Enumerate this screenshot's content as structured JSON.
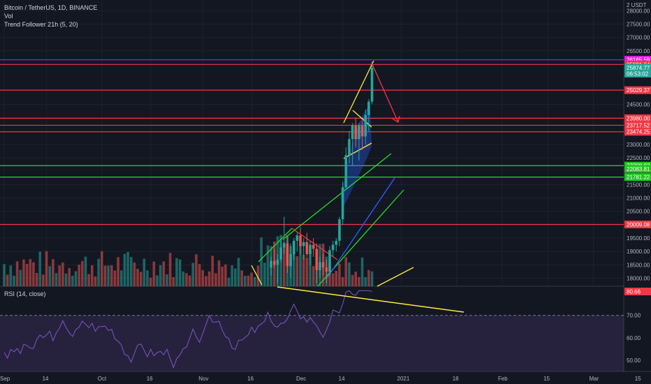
{
  "legend": {
    "symbol": "Bitcoin / TetherUS, 1D, BINANCE",
    "volume": "Vol",
    "indicator": "Trend Follower 21h (5, 20)"
  },
  "rsi_label": "RSI (14, close)",
  "chart_data": [
    {
      "type": "candlestick",
      "ylim": [
        17700,
        28400
      ],
      "y_ticks": [
        {
          "label": "28000.00",
          "value": 28000
        },
        {
          "label": "27500.00",
          "value": 27500
        },
        {
          "label": "27000.00",
          "value": 27000
        },
        {
          "label": "26500.00",
          "value": 26500
        },
        {
          "label": "24500.00",
          "value": 24500
        },
        {
          "label": "24000.00",
          "value": 24000
        },
        {
          "label": "23000.00",
          "value": 23000
        },
        {
          "label": "22500.00",
          "value": 22500
        },
        {
          "label": "21500.00",
          "value": 21500
        },
        {
          "label": "21000.00",
          "value": 21000
        },
        {
          "label": "20500.00",
          "value": 20500
        },
        {
          "label": "19500.00",
          "value": 19500
        },
        {
          "label": "19000.00",
          "value": 19000
        },
        {
          "label": "18500.00",
          "value": 18500
        },
        {
          "label": "18000.00",
          "value": 18000
        }
      ],
      "top_axis_label": "2 USDT",
      "price_labels": [
        {
          "text": "26165.59",
          "value": 26165.59,
          "color": "#e91ee8"
        },
        {
          "text": "25991.34",
          "value": 25991.34,
          "color": "#f23645"
        },
        {
          "text": "25874.77",
          "value": 25874.77,
          "color": "#26a69a"
        },
        {
          "text": "06:53:02",
          "value": 25650,
          "color": "#26a69a"
        },
        {
          "text": "25029.37",
          "value": 25029.37,
          "color": "#f23645"
        },
        {
          "text": "23980.00",
          "value": 23980,
          "color": "#f23645"
        },
        {
          "text": "23717.52",
          "value": 23717.52,
          "color": "#f23645"
        },
        {
          "text": "23474.25",
          "value": 23474.25,
          "color": "#f23645"
        },
        {
          "text": "22208.83",
          "value": 22208.83,
          "color": "#22c322"
        },
        {
          "text": "22083.81",
          "value": 22083.81,
          "color": "#22c322"
        },
        {
          "text": "21781.22",
          "value": 21781.22,
          "color": "#22c322"
        },
        {
          "text": "20009.08",
          "value": 20009.08,
          "color": "#f23645"
        }
      ],
      "horizontal_lines": [
        {
          "value": 26165.59,
          "color": "#9c27b0"
        },
        {
          "value": 25991.34,
          "color": "#f23645"
        },
        {
          "value": 25029.37,
          "color": "#f23645"
        },
        {
          "value": 23980,
          "color": "#f23645"
        },
        {
          "value": 23717.52,
          "color": "#f23645"
        },
        {
          "value": 23474.25,
          "color": "#f23645"
        },
        {
          "value": 22208.83,
          "color": "#22e022"
        },
        {
          "value": 21781.22,
          "color": "#22e022"
        },
        {
          "value": 20009.08,
          "color": "#f23645"
        }
      ],
      "x_ticks": [
        {
          "label": "Sep",
          "index": 0
        },
        {
          "label": "14",
          "index": 13
        },
        {
          "label": "Oct",
          "index": 30
        },
        {
          "label": "16",
          "index": 45
        },
        {
          "label": "Nov",
          "index": 61
        },
        {
          "label": "16",
          "index": 76
        },
        {
          "label": "Dec",
          "index": 91
        },
        {
          "label": "14",
          "index": 104
        },
        {
          "label": "2021",
          "index": 122
        },
        {
          "label": "18",
          "index": 139
        },
        {
          "label": "Feb",
          "index": 153
        },
        {
          "label": "15",
          "index": 167
        },
        {
          "label": "Mar",
          "index": 181
        },
        {
          "label": "15",
          "index": 195
        }
      ],
      "candles": [
        {
          "i": 82,
          "o": 18400,
          "h": 18800,
          "l": 18100,
          "c": 18650
        },
        {
          "i": 83,
          "o": 18650,
          "h": 19100,
          "l": 18400,
          "c": 18500
        },
        {
          "i": 84,
          "o": 18500,
          "h": 18900,
          "l": 17800,
          "c": 18700
        },
        {
          "i": 85,
          "o": 18700,
          "h": 19400,
          "l": 18600,
          "c": 19150
        },
        {
          "i": 86,
          "o": 19150,
          "h": 20300,
          "l": 18900,
          "c": 19300
        },
        {
          "i": 87,
          "o": 19300,
          "h": 19600,
          "l": 18200,
          "c": 18450
        },
        {
          "i": 88,
          "o": 18450,
          "h": 19300,
          "l": 18000,
          "c": 18900
        },
        {
          "i": 89,
          "o": 18900,
          "h": 19500,
          "l": 18700,
          "c": 19400
        },
        {
          "i": 90,
          "o": 19400,
          "h": 19700,
          "l": 19000,
          "c": 19600
        },
        {
          "i": 91,
          "o": 19600,
          "h": 19900,
          "l": 18900,
          "c": 19200
        },
        {
          "i": 92,
          "o": 19200,
          "h": 19500,
          "l": 18700,
          "c": 19350
        },
        {
          "i": 93,
          "o": 19350,
          "h": 19700,
          "l": 18800,
          "c": 18900
        },
        {
          "i": 94,
          "o": 18900,
          "h": 19400,
          "l": 18500,
          "c": 19250
        },
        {
          "i": 95,
          "o": 19250,
          "h": 19500,
          "l": 18800,
          "c": 19100
        },
        {
          "i": 96,
          "o": 19100,
          "h": 19300,
          "l": 17800,
          "c": 18300
        },
        {
          "i": 97,
          "o": 18300,
          "h": 18800,
          "l": 18000,
          "c": 18600
        },
        {
          "i": 98,
          "o": 18600,
          "h": 18900,
          "l": 18100,
          "c": 18400
        },
        {
          "i": 99,
          "o": 18400,
          "h": 18700,
          "l": 17800,
          "c": 18250
        },
        {
          "i": 100,
          "o": 18250,
          "h": 19200,
          "l": 18100,
          "c": 19050
        },
        {
          "i": 101,
          "o": 19050,
          "h": 19400,
          "l": 18800,
          "c": 19250
        },
        {
          "i": 102,
          "o": 19250,
          "h": 19500,
          "l": 19000,
          "c": 19400
        },
        {
          "i": 103,
          "o": 19400,
          "h": 20300,
          "l": 19200,
          "c": 20200
        },
        {
          "i": 104,
          "o": 20200,
          "h": 21600,
          "l": 20000,
          "c": 21400
        },
        {
          "i": 105,
          "o": 21400,
          "h": 22900,
          "l": 21300,
          "c": 22600
        },
        {
          "i": 106,
          "o": 22600,
          "h": 23500,
          "l": 22300,
          "c": 23200
        },
        {
          "i": 107,
          "o": 23200,
          "h": 23800,
          "l": 22200,
          "c": 23700
        },
        {
          "i": 108,
          "o": 23700,
          "h": 24000,
          "l": 22900,
          "c": 23200
        },
        {
          "i": 109,
          "o": 23200,
          "h": 23800,
          "l": 22400,
          "c": 23700
        },
        {
          "i": 110,
          "o": 23700,
          "h": 23900,
          "l": 22800,
          "c": 23300
        },
        {
          "i": 111,
          "o": 23300,
          "h": 24300,
          "l": 23000,
          "c": 24100
        },
        {
          "i": 112,
          "o": 24100,
          "h": 24700,
          "l": 23500,
          "c": 24600
        },
        {
          "i": 113,
          "o": 24600,
          "h": 26100,
          "l": 24500,
          "c": 25870
        }
      ],
      "rsi": {
        "ylim": [
          45,
          83
        ],
        "overbought": 70,
        "y_ticks": [
          {
            "label": "70.00",
            "value": 70
          },
          {
            "label": "60.00",
            "value": 60
          },
          {
            "label": "50.00",
            "value": 50
          }
        ],
        "last": {
          "text": "80.66",
          "value": 80.66,
          "color": "#f23645"
        }
      }
    }
  ]
}
